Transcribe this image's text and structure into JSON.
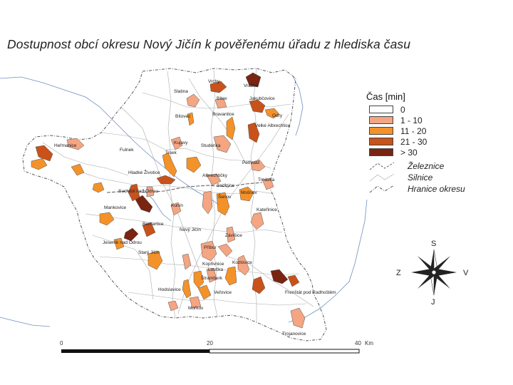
{
  "title": "Dostupnost obcí okresu Nový Jičín k pověřenému úřadu z hlediska času",
  "legend": {
    "title": "Čas [min]",
    "classes": [
      {
        "label": "0",
        "color": "#ffffff"
      },
      {
        "label": "1 - 10",
        "color": "#f4a582"
      },
      {
        "label": "11 - 20",
        "color": "#f4922a"
      },
      {
        "label": "21 - 30",
        "color": "#c8521a"
      },
      {
        "label": "> 30",
        "color": "#7a2412"
      }
    ],
    "lines": [
      {
        "label": "Železnice",
        "icon": "railway-line-icon"
      },
      {
        "label": "Silnice",
        "icon": "road-line-icon"
      },
      {
        "label": "Hranice okresu",
        "icon": "district-border-icon"
      }
    ]
  },
  "compass": {
    "north": "S",
    "south": "J",
    "west": "Z",
    "east": "V"
  },
  "scale": {
    "ticks": [
      "0",
      "20",
      "40"
    ],
    "unit": "Km"
  },
  "places": [
    "Vražné",
    "Vrchy",
    "Jakubčovice",
    "Odry",
    "Velké Albrechtice",
    "Bítov",
    "Bílovec",
    "Slatina",
    "Studénka",
    "Kujavy",
    "Bravantice",
    "Tísek",
    "Hladké Životice",
    "Fulnek",
    "Heřmanice",
    "Suchdol nad Odrou",
    "Mankovice",
    "Starý Jičín",
    "Kunín",
    "Albrechtičky",
    "Šenov",
    "Mošnov",
    "Petřvald",
    "Kopřivnice",
    "Příbor",
    "Frenštát pod Radhoštěm",
    "Trojanovice",
    "Kozlovice",
    "Štramberk",
    "Hodslavice",
    "Jeseník nad Odrou",
    "Bernartice",
    "Nový Jičín",
    "Závišice",
    "Sedlnice",
    "Trnávka",
    "Kateřinice",
    "Loučka",
    "Mořkov",
    "Veřovice"
  ]
}
